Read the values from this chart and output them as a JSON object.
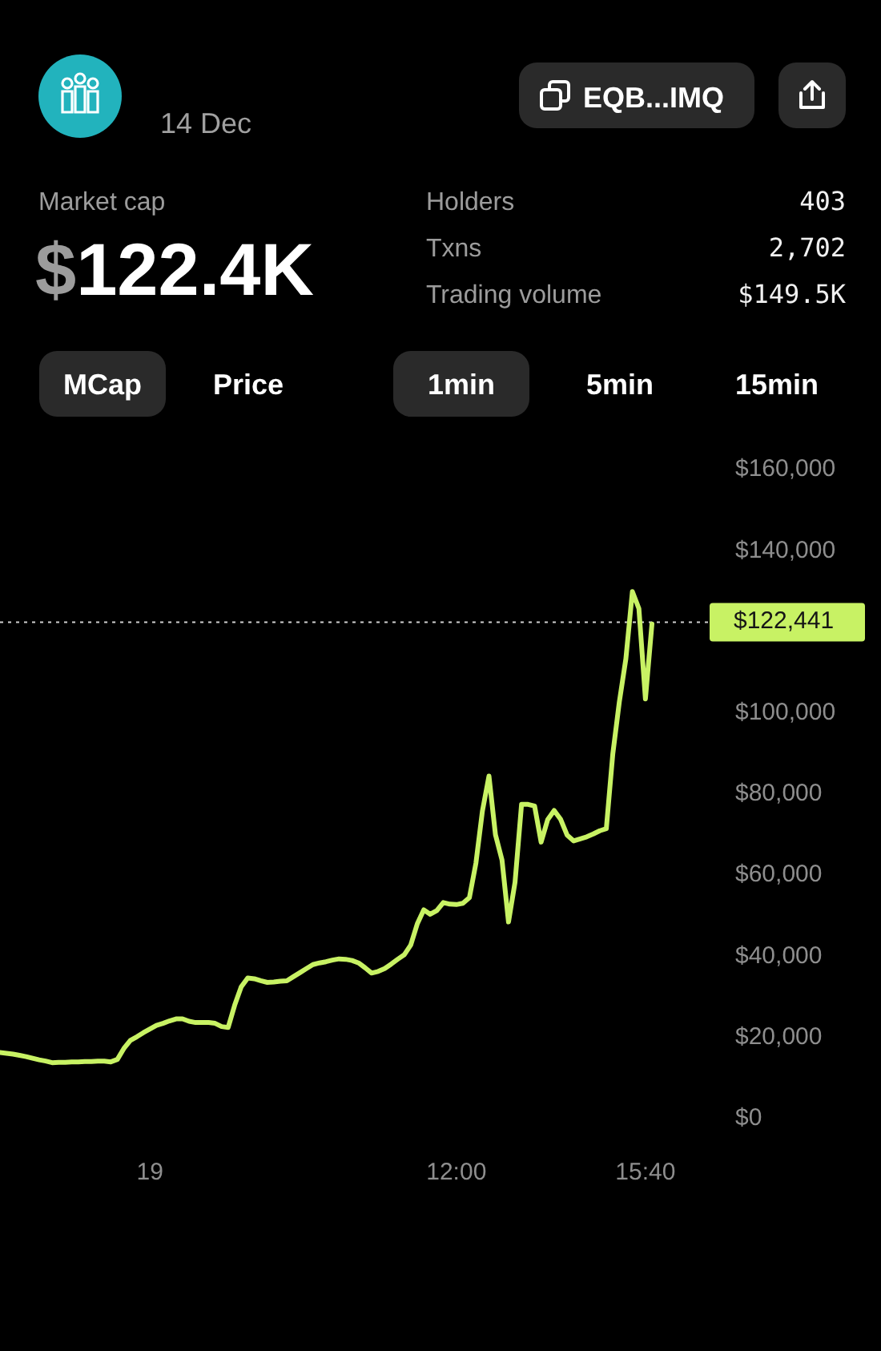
{
  "chart_data": [
    {
      "type": "other",
      "subtitle": "14 Dec",
      "annotations": [
        "EQB...IMQ",
        "Market cap",
        "$122.4K",
        "Holders",
        "403",
        "Txns",
        "2,702",
        "Trading volume",
        "$149.5K",
        "MCap",
        "Price",
        "1min",
        "5min",
        "15min"
      ]
    },
    {
      "type": "line",
      "categories": [
        null,
        null,
        null,
        null,
        null,
        null,
        null,
        null,
        null,
        null,
        null,
        null,
        null,
        null,
        null,
        null,
        null,
        null,
        null,
        null,
        null,
        null,
        null,
        "19",
        null,
        null,
        null,
        null,
        null,
        null,
        null,
        null,
        null,
        null,
        null,
        null,
        null,
        null,
        null,
        null,
        null,
        null,
        null,
        null,
        null,
        null,
        null,
        null,
        null,
        null,
        null,
        null,
        null,
        null,
        null,
        null,
        null,
        null,
        null,
        null,
        null,
        null,
        null,
        null,
        null,
        null,
        null,
        null,
        null,
        null,
        "12:00",
        null,
        null,
        null,
        null,
        null,
        null,
        null,
        null,
        null,
        null,
        null,
        null,
        null,
        null,
        null,
        null,
        null,
        null,
        null,
        null,
        null,
        null,
        null,
        null,
        null,
        null,
        null,
        null,
        "15:40",
        null
      ],
      "values": [
        16300,
        16100,
        15900,
        15600,
        15300,
        14900,
        14500,
        14200,
        13800,
        13900,
        13900,
        14000,
        14000,
        14100,
        14100,
        14200,
        14200,
        14000,
        14600,
        17300,
        19300,
        20200,
        21200,
        22100,
        23000,
        23500,
        24100,
        24600,
        24600,
        24000,
        23700,
        23700,
        23700,
        23500,
        22700,
        22500,
        28000,
        32500,
        34700,
        34500,
        34000,
        33600,
        33700,
        33900,
        34000,
        35000,
        36000,
        37000,
        38000,
        38400,
        38700,
        39100,
        39400,
        39300,
        39000,
        38400,
        37200,
        35900,
        36300,
        37000,
        38100,
        39300,
        40400,
        42800,
        48000,
        51500,
        50400,
        51300,
        53300,
        52900,
        52800,
        53100,
        54500,
        63000,
        75900,
        84500,
        70000,
        63800,
        48500,
        58300,
        77500,
        77500,
        77100,
        68200,
        73700,
        76000,
        73800,
        69900,
        68500,
        69000,
        69500,
        70200,
        71000,
        71500,
        90000,
        102800,
        113400,
        130000,
        125800,
        103500,
        122000
      ],
      "color": "#c8f264",
      "ylim": [
        0,
        160000
      ],
      "yticks": [
        {
          "value": 0,
          "label": "$0"
        },
        {
          "value": 20000,
          "label": "$20,000"
        },
        {
          "value": 40000,
          "label": "$40,000"
        },
        {
          "value": 60000,
          "label": "$60,000"
        },
        {
          "value": 80000,
          "label": "$80,000"
        },
        {
          "value": 100000,
          "label": "$100,000"
        },
        {
          "value": 140000,
          "label": "$140,000"
        },
        {
          "value": 160000,
          "label": "$160,000"
        }
      ],
      "ref_lines": [
        {
          "axis": "y",
          "value": 122441,
          "label": "$122,441",
          "color": "#d0d0d0",
          "line_style": "dotted"
        }
      ]
    }
  ]
}
